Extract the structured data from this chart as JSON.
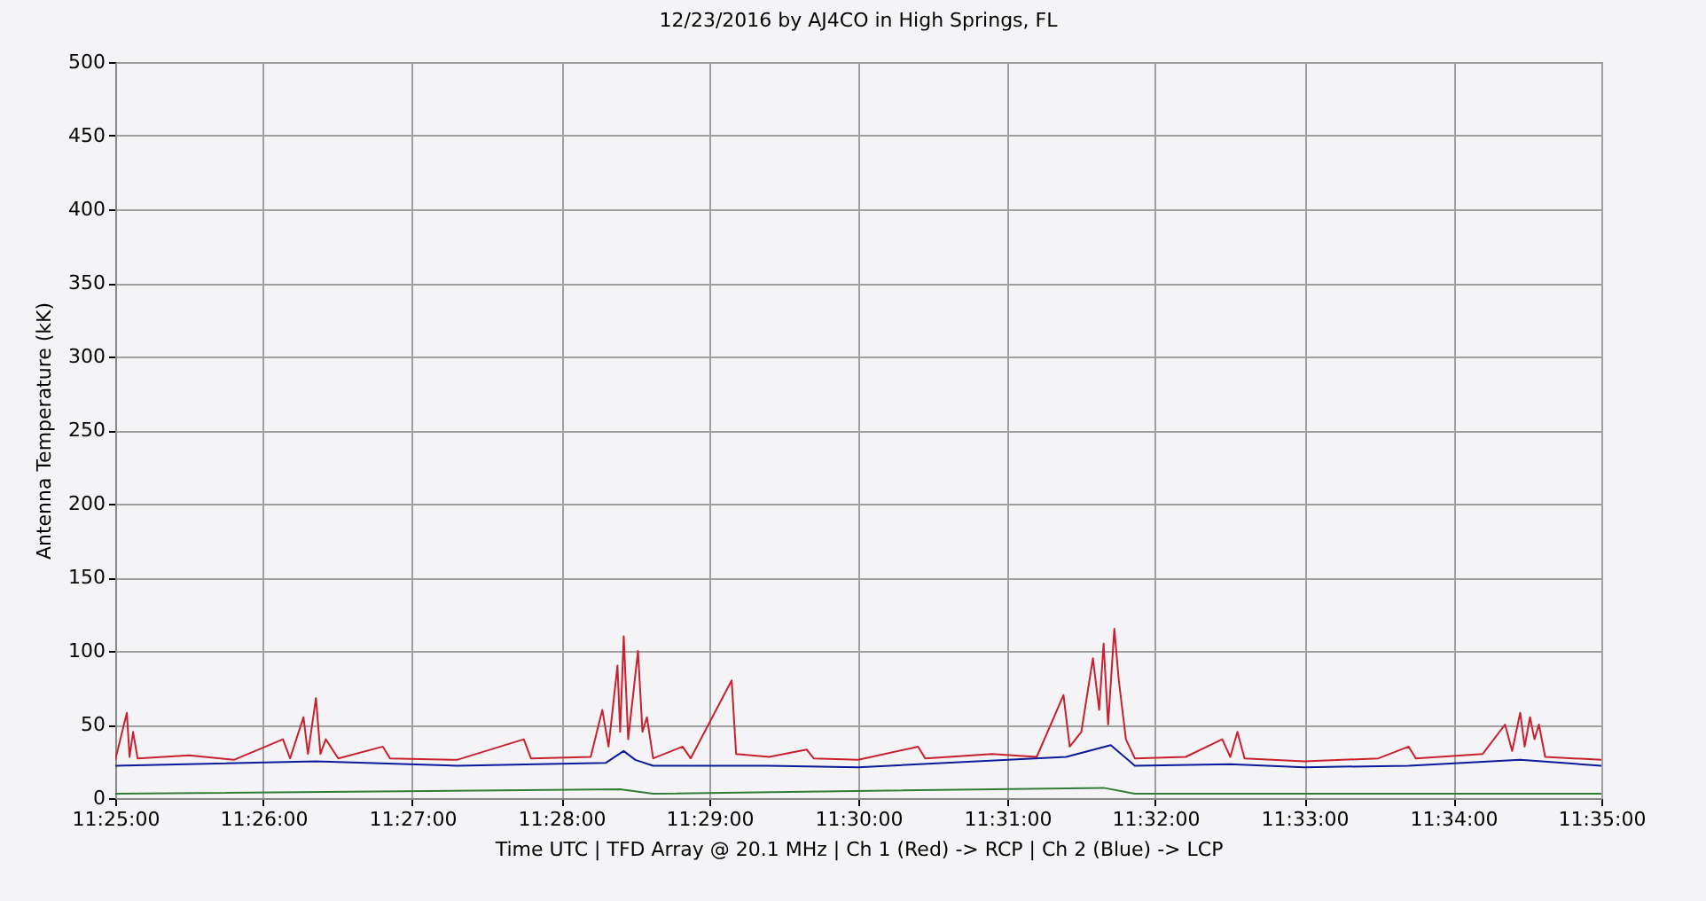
{
  "chart_data": {
    "type": "line",
    "title": "12/23/2016  by  AJ4CO  in  High Springs, FL",
    "xlabel": "Time UTC   |   TFD Array @ 20.1 MHz   |   Ch 1 (Red) -> RCP   |   Ch 2 (Blue)  -> LCP",
    "ylabel": "Antenna Temperature (kK)",
    "series": [
      {
        "color": "#c8202f",
        "x": [
          11.4167,
          11.418,
          11.4183,
          11.4187,
          11.4192,
          11.425,
          11.43,
          11.4355,
          11.4363,
          11.4378,
          11.4383,
          11.4392,
          11.4397,
          11.4403,
          11.4417,
          11.4467,
          11.4475,
          11.455,
          11.4625,
          11.4633,
          11.47,
          11.4713,
          11.472,
          11.473,
          11.4733,
          11.4737,
          11.4742,
          11.4753,
          11.4758,
          11.4763,
          11.477,
          11.4803,
          11.4812,
          11.4858,
          11.4863,
          11.49,
          11.4942,
          11.495,
          11.5,
          11.5067,
          11.5075,
          11.515,
          11.52,
          11.523,
          11.5237,
          11.525,
          11.5263,
          11.527,
          11.5275,
          11.528,
          11.5287,
          11.5292,
          11.53,
          11.531,
          11.5367,
          11.5408,
          11.5417,
          11.5425,
          11.5433,
          11.55,
          11.5583,
          11.5617,
          11.5625,
          11.57,
          11.5725,
          11.5733,
          11.5742,
          11.5747,
          11.5753,
          11.5758,
          11.5763,
          11.577,
          11.5833
        ],
        "values": [
          26,
          58,
          28,
          45,
          27,
          29,
          26,
          40,
          27,
          55,
          30,
          68,
          30,
          40,
          27,
          35,
          27,
          26,
          40,
          27,
          28,
          60,
          35,
          90,
          45,
          110,
          40,
          100,
          45,
          55,
          27,
          35,
          27,
          80,
          30,
          28,
          33,
          27,
          26,
          35,
          27,
          30,
          28,
          70,
          35,
          45,
          95,
          60,
          105,
          50,
          115,
          80,
          40,
          27,
          28,
          40,
          28,
          45,
          27,
          25,
          27,
          35,
          27,
          30,
          50,
          32,
          58,
          35,
          55,
          40,
          50,
          28,
          26
        ]
      },
      {
        "color": "#0a1a9a",
        "x": [
          11.4167,
          11.4392,
          11.455,
          11.4717,
          11.4737,
          11.475,
          11.477,
          11.49,
          11.5,
          11.5233,
          11.5283,
          11.531,
          11.5417,
          11.55,
          11.5617,
          11.5742,
          11.5833
        ],
        "values": [
          22,
          25,
          22,
          24,
          32,
          26,
          22,
          22,
          21,
          28,
          36,
          22,
          23,
          21,
          22,
          26,
          22
        ]
      },
      {
        "color": "#2e7d32",
        "x": [
          11.4167,
          11.4733,
          11.477,
          11.5275,
          11.531,
          11.5833
        ],
        "values": [
          3,
          6,
          3,
          7,
          3,
          3
        ]
      }
    ],
    "xlim": [
      11.4167,
      11.5833
    ],
    "xticks": [
      {
        "value": 11.4167,
        "label": "11:25:00"
      },
      {
        "value": 11.4333,
        "label": "11:26:00"
      },
      {
        "value": 11.45,
        "label": "11:27:00"
      },
      {
        "value": 11.4667,
        "label": "11:28:00"
      },
      {
        "value": 11.4833,
        "label": "11:29:00"
      },
      {
        "value": 11.5,
        "label": "11:30:00"
      },
      {
        "value": 11.5167,
        "label": "11:31:00"
      },
      {
        "value": 11.5333,
        "label": "11:32:00"
      },
      {
        "value": 11.55,
        "label": "11:33:00"
      },
      {
        "value": 11.5667,
        "label": "11:34:00"
      },
      {
        "value": 11.5833,
        "label": "11:35:00"
      }
    ],
    "ylim": [
      0,
      500
    ],
    "yticks": [
      0,
      50,
      100,
      150,
      200,
      250,
      300,
      350,
      400,
      450,
      500
    ],
    "grid": true,
    "line_style": "solid"
  }
}
